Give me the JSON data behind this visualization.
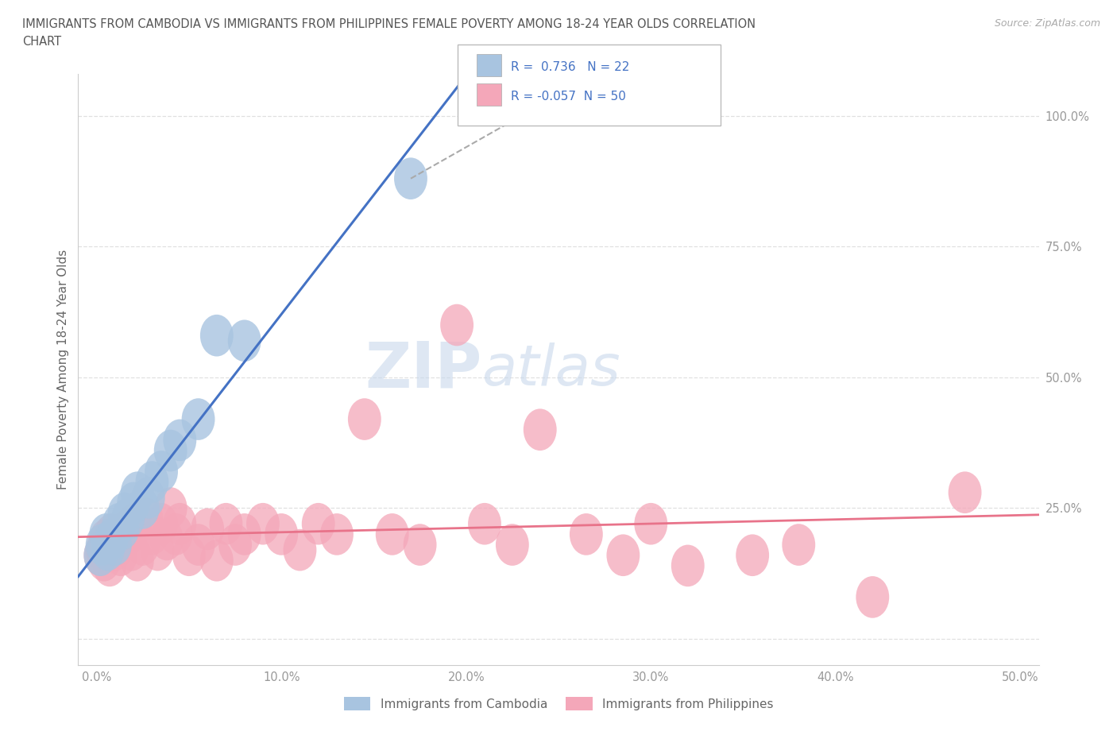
{
  "title_line1": "IMMIGRANTS FROM CAMBODIA VS IMMIGRANTS FROM PHILIPPINES FEMALE POVERTY AMONG 18-24 YEAR OLDS CORRELATION",
  "title_line2": "CHART",
  "source": "Source: ZipAtlas.com",
  "ylabel": "Female Poverty Among 18-24 Year Olds",
  "xlim": [
    -1.0,
    51.0
  ],
  "ylim": [
    -5.0,
    108.0
  ],
  "xticks": [
    0.0,
    10.0,
    20.0,
    30.0,
    40.0,
    50.0
  ],
  "xticklabels": [
    "0.0%",
    "10.0%",
    "20.0%",
    "30.0%",
    "40.0%",
    "50.0%"
  ],
  "yticks": [
    0.0,
    25.0,
    50.0,
    75.0,
    100.0
  ],
  "yticklabels": [
    "",
    "25.0%",
    "50.0%",
    "75.0%",
    "100.0%"
  ],
  "cambodia_color": "#a8c4e0",
  "philippines_color": "#f4a7b9",
  "cambodia_line_color": "#4472c4",
  "philippines_line_color": "#e8738a",
  "r_cambodia": 0.736,
  "n_cambodia": 22,
  "r_philippines": -0.057,
  "n_philippines": 50,
  "watermark_zip": "ZIP",
  "watermark_atlas": "atlas",
  "cambodia_x": [
    0.2,
    0.3,
    0.5,
    0.6,
    0.8,
    1.0,
    1.2,
    1.4,
    1.5,
    1.7,
    2.0,
    2.2,
    2.5,
    2.8,
    3.0,
    3.5,
    4.0,
    4.5,
    5.5,
    6.5,
    8.0,
    17.0
  ],
  "cambodia_y": [
    16.0,
    18.0,
    20.0,
    17.0,
    19.0,
    18.0,
    22.0,
    21.0,
    24.0,
    23.0,
    26.0,
    28.0,
    25.0,
    27.0,
    30.0,
    32.0,
    36.0,
    38.0,
    42.0,
    58.0,
    57.0,
    88.0
  ],
  "philippines_x": [
    0.2,
    0.3,
    0.4,
    0.5,
    0.7,
    0.8,
    1.0,
    1.1,
    1.3,
    1.5,
    1.7,
    1.9,
    2.0,
    2.2,
    2.5,
    2.7,
    3.0,
    3.3,
    3.5,
    3.8,
    4.0,
    4.3,
    4.5,
    5.0,
    5.5,
    6.0,
    6.5,
    7.0,
    7.5,
    8.0,
    9.0,
    10.0,
    11.0,
    12.0,
    13.0,
    14.5,
    16.0,
    17.5,
    19.5,
    21.0,
    22.5,
    24.0,
    26.5,
    28.5,
    30.0,
    32.0,
    35.5,
    38.0,
    42.0,
    47.0
  ],
  "philippines_y": [
    16.0,
    17.0,
    15.0,
    19.0,
    14.0,
    20.0,
    17.0,
    18.0,
    16.0,
    19.0,
    21.0,
    17.0,
    22.0,
    15.0,
    18.0,
    23.0,
    20.0,
    17.0,
    22.0,
    19.0,
    25.0,
    20.0,
    22.0,
    16.0,
    18.0,
    21.0,
    15.0,
    22.0,
    18.0,
    20.0,
    22.0,
    20.0,
    17.0,
    22.0,
    20.0,
    42.0,
    20.0,
    18.0,
    60.0,
    22.0,
    18.0,
    40.0,
    20.0,
    16.0,
    22.0,
    14.0,
    16.0,
    18.0,
    8.0,
    28.0
  ],
  "background_color": "#ffffff",
  "grid_color": "#dddddd",
  "title_color": "#555555",
  "axis_label_color": "#666666",
  "tick_color": "#999999",
  "legend_r_color": "#4472c4",
  "fig_width": 14.06,
  "fig_height": 9.3
}
